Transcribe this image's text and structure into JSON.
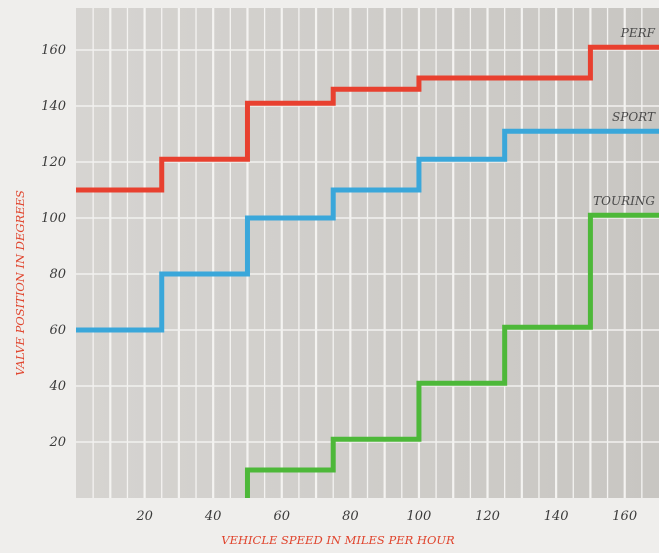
{
  "chart_data": {
    "type": "line",
    "title": "",
    "xlabel": "VEHICLE SPEED IN MILES PER HOUR",
    "ylabel": "VALVE POSITION IN DEGREES",
    "xlim": [
      0,
      170
    ],
    "ylim": [
      0,
      175
    ],
    "x_ticks": [
      20,
      40,
      60,
      80,
      100,
      120,
      140,
      160
    ],
    "y_ticks": [
      20,
      40,
      60,
      80,
      100,
      120,
      140,
      160
    ],
    "grid": true,
    "line_shape": "step",
    "series": [
      {
        "name": "PERF",
        "color": "#e8402f",
        "points": [
          [
            0,
            110
          ],
          [
            25,
            110
          ],
          [
            25,
            121
          ],
          [
            50,
            121
          ],
          [
            50,
            141
          ],
          [
            75,
            141
          ],
          [
            75,
            146
          ],
          [
            100,
            146
          ],
          [
            100,
            150
          ],
          [
            150,
            150
          ],
          [
            150,
            161
          ],
          [
            170,
            161
          ]
        ]
      },
      {
        "name": "SPORT",
        "color": "#3aa7da",
        "points": [
          [
            0,
            60
          ],
          [
            25,
            60
          ],
          [
            25,
            80
          ],
          [
            50,
            80
          ],
          [
            50,
            100
          ],
          [
            75,
            100
          ],
          [
            75,
            110
          ],
          [
            100,
            110
          ],
          [
            100,
            121
          ],
          [
            125,
            121
          ],
          [
            125,
            131
          ],
          [
            170,
            131
          ]
        ]
      },
      {
        "name": "TOURING",
        "color": "#4db839",
        "points": [
          [
            50,
            0
          ],
          [
            50,
            10
          ],
          [
            75,
            10
          ],
          [
            75,
            21
          ],
          [
            100,
            21
          ],
          [
            100,
            41
          ],
          [
            125,
            41
          ],
          [
            125,
            61
          ],
          [
            150,
            61
          ],
          [
            150,
            101
          ],
          [
            170,
            101
          ]
        ]
      }
    ]
  }
}
